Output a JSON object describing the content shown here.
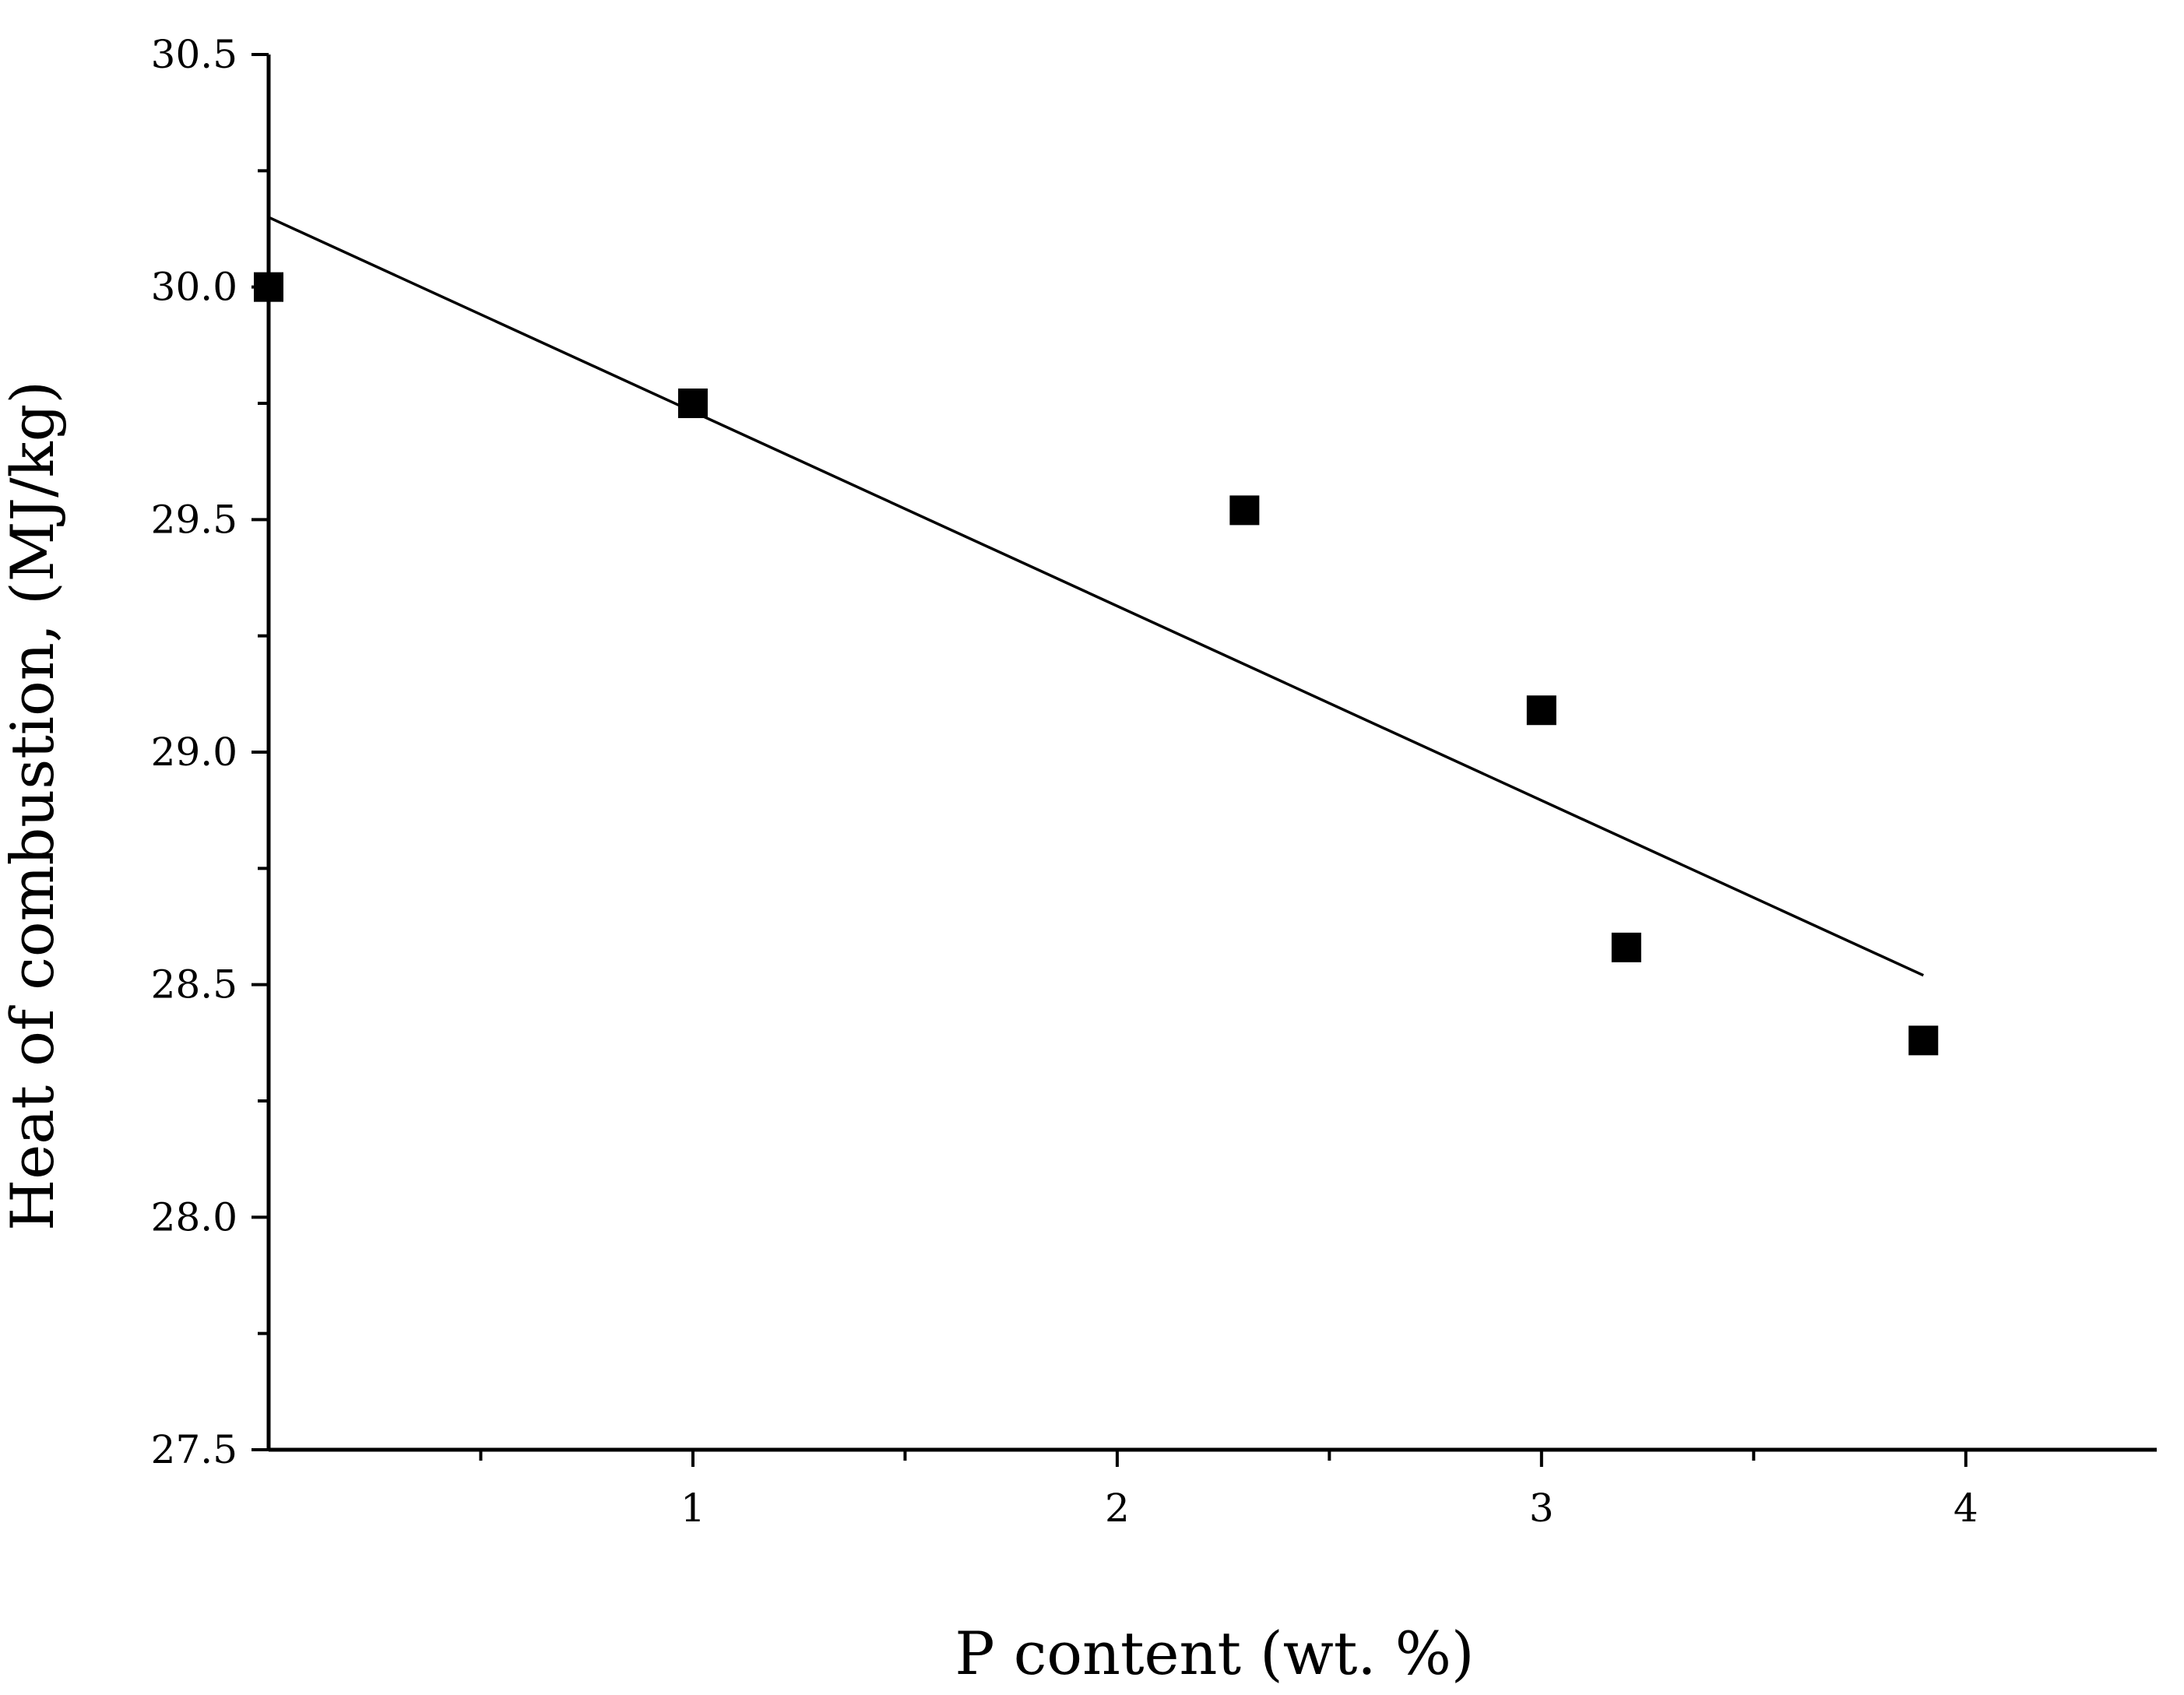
{
  "chart_data": {
    "type": "scatter",
    "title": "",
    "xlabel": "P content (wt. %)",
    "ylabel": "Heat of combustion, (MJ/kg)",
    "xlim": [
      0,
      4.45
    ],
    "ylim": [
      27.5,
      30.5
    ],
    "x_ticks": [
      1,
      2,
      3,
      4
    ],
    "x_tick_labels": [
      "1",
      "2",
      "3",
      "4"
    ],
    "x_minor_ticks": [
      0.5,
      1.5,
      2.5,
      3.5
    ],
    "y_ticks": [
      27.5,
      28.0,
      28.5,
      29.0,
      29.5,
      30.0,
      30.5
    ],
    "y_tick_labels": [
      "27.5",
      "28.0",
      "28.5",
      "29.0",
      "29.5",
      "30.0",
      "30.5"
    ],
    "y_minor_ticks": [
      27.75,
      28.25,
      28.75,
      29.25,
      29.75,
      30.25
    ],
    "grid": false,
    "legend": "none",
    "series": [
      {
        "type": "scatter",
        "marker": "square",
        "color": "#000000",
        "x": [
          0,
          1,
          2.3,
          3,
          3.2,
          3.9
        ],
        "y": [
          30.0,
          29.75,
          29.52,
          29.09,
          28.58,
          28.38
        ]
      },
      {
        "type": "line",
        "color": "#000000",
        "x": [
          0,
          3.9
        ],
        "y": [
          30.15,
          28.52
        ]
      }
    ]
  }
}
